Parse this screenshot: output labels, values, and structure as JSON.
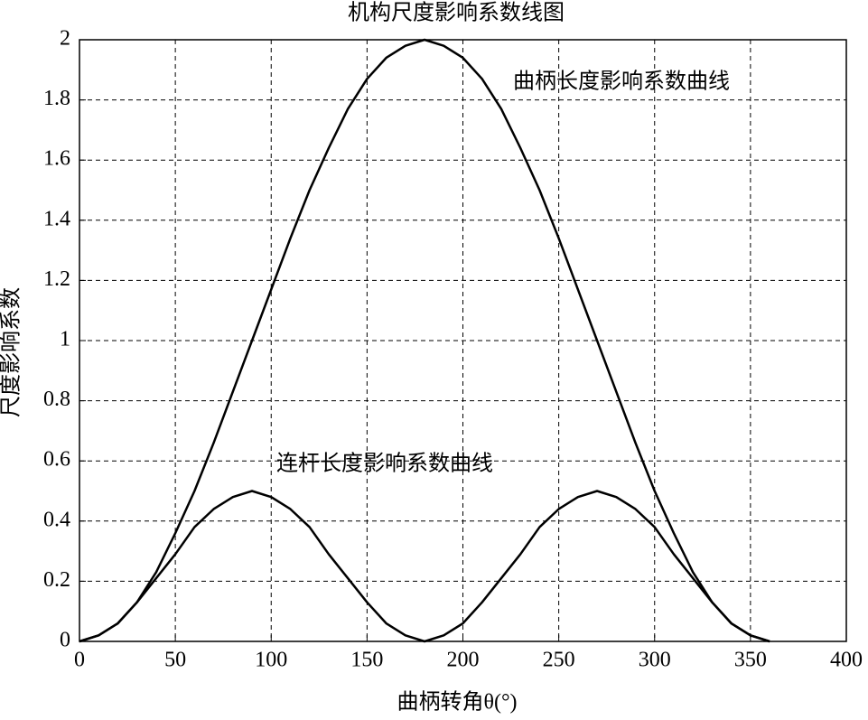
{
  "chart_data": {
    "type": "line",
    "title": "机构尺度影响系数线图",
    "x_label": "曲柄转角θ(°)",
    "y_label": "尺度影响系数",
    "annotations": [
      "曲柄长度影响系数曲线",
      "连杆长度影响系数曲线"
    ],
    "x": [
      0,
      10,
      20,
      30,
      40,
      50,
      60,
      70,
      80,
      90,
      100,
      110,
      120,
      130,
      140,
      150,
      160,
      170,
      180,
      190,
      200,
      210,
      220,
      230,
      240,
      250,
      260,
      270,
      280,
      290,
      300,
      310,
      320,
      330,
      340,
      350,
      360
    ],
    "series": [
      {
        "color": "#000000",
        "values": [
          0,
          0.02,
          0.06,
          0.13,
          0.23,
          0.36,
          0.5,
          0.66,
          0.83,
          1.0,
          1.17,
          1.34,
          1.5,
          1.64,
          1.77,
          1.87,
          1.94,
          1.98,
          2,
          1.98,
          1.94,
          1.87,
          1.77,
          1.64,
          1.5,
          1.34,
          1.17,
          1.0,
          0.83,
          0.66,
          0.5,
          0.36,
          0.23,
          0.13,
          0.06,
          0.02,
          0
        ]
      },
      {
        "color": "#000000",
        "values": [
          0,
          0.02,
          0.06,
          0.13,
          0.21,
          0.29,
          0.38,
          0.44,
          0.48,
          0.5,
          0.48,
          0.44,
          0.38,
          0.29,
          0.21,
          0.13,
          0.06,
          0.02,
          0,
          0.02,
          0.06,
          0.13,
          0.21,
          0.29,
          0.38,
          0.44,
          0.48,
          0.5,
          0.48,
          0.44,
          0.38,
          0.29,
          0.21,
          0.13,
          0.06,
          0.02,
          0
        ]
      }
    ],
    "xlim": [
      0,
      400
    ],
    "xticks": [
      0,
      50,
      100,
      150,
      200,
      250,
      300,
      350,
      400
    ],
    "ylim": [
      0,
      2
    ],
    "yticks": [
      0,
      0.2,
      0.4,
      0.6,
      0.8,
      1,
      1.2,
      1.4,
      1.6,
      1.8,
      2
    ],
    "grid": true
  }
}
